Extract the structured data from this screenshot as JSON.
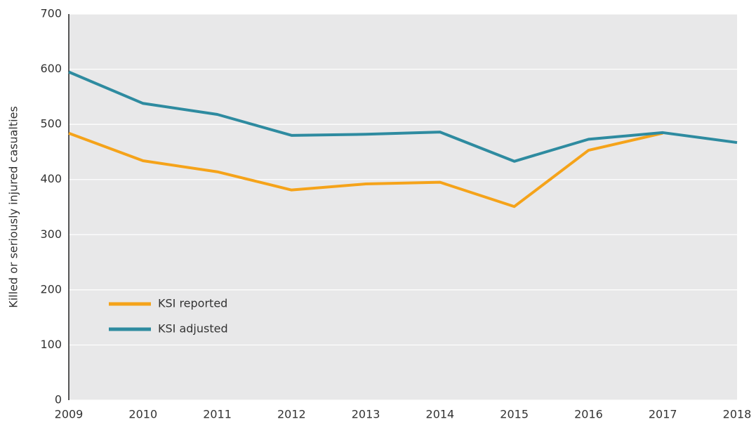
{
  "chart_data": {
    "type": "line",
    "y_label": "Killed or seriously injured casualties",
    "categories": [
      "2009",
      "2010",
      "2011",
      "2012",
      "2013",
      "2014",
      "2015",
      "2016",
      "2017",
      "2018"
    ],
    "series": [
      {
        "name": "KSI reported",
        "color": "#f5a31a",
        "values": [
          484,
          434,
          414,
          381,
          392,
          395,
          351,
          453,
          484,
          null
        ]
      },
      {
        "name": "KSI adjusted",
        "color": "#2e8ba0",
        "values": [
          595,
          538,
          518,
          480,
          482,
          486,
          433,
          473,
          485,
          467
        ]
      }
    ],
    "ylim": [
      0,
      700
    ],
    "yticks": [
      0,
      100,
      200,
      300,
      400,
      500,
      600,
      700
    ],
    "grid": true,
    "legend": "lower-left"
  }
}
